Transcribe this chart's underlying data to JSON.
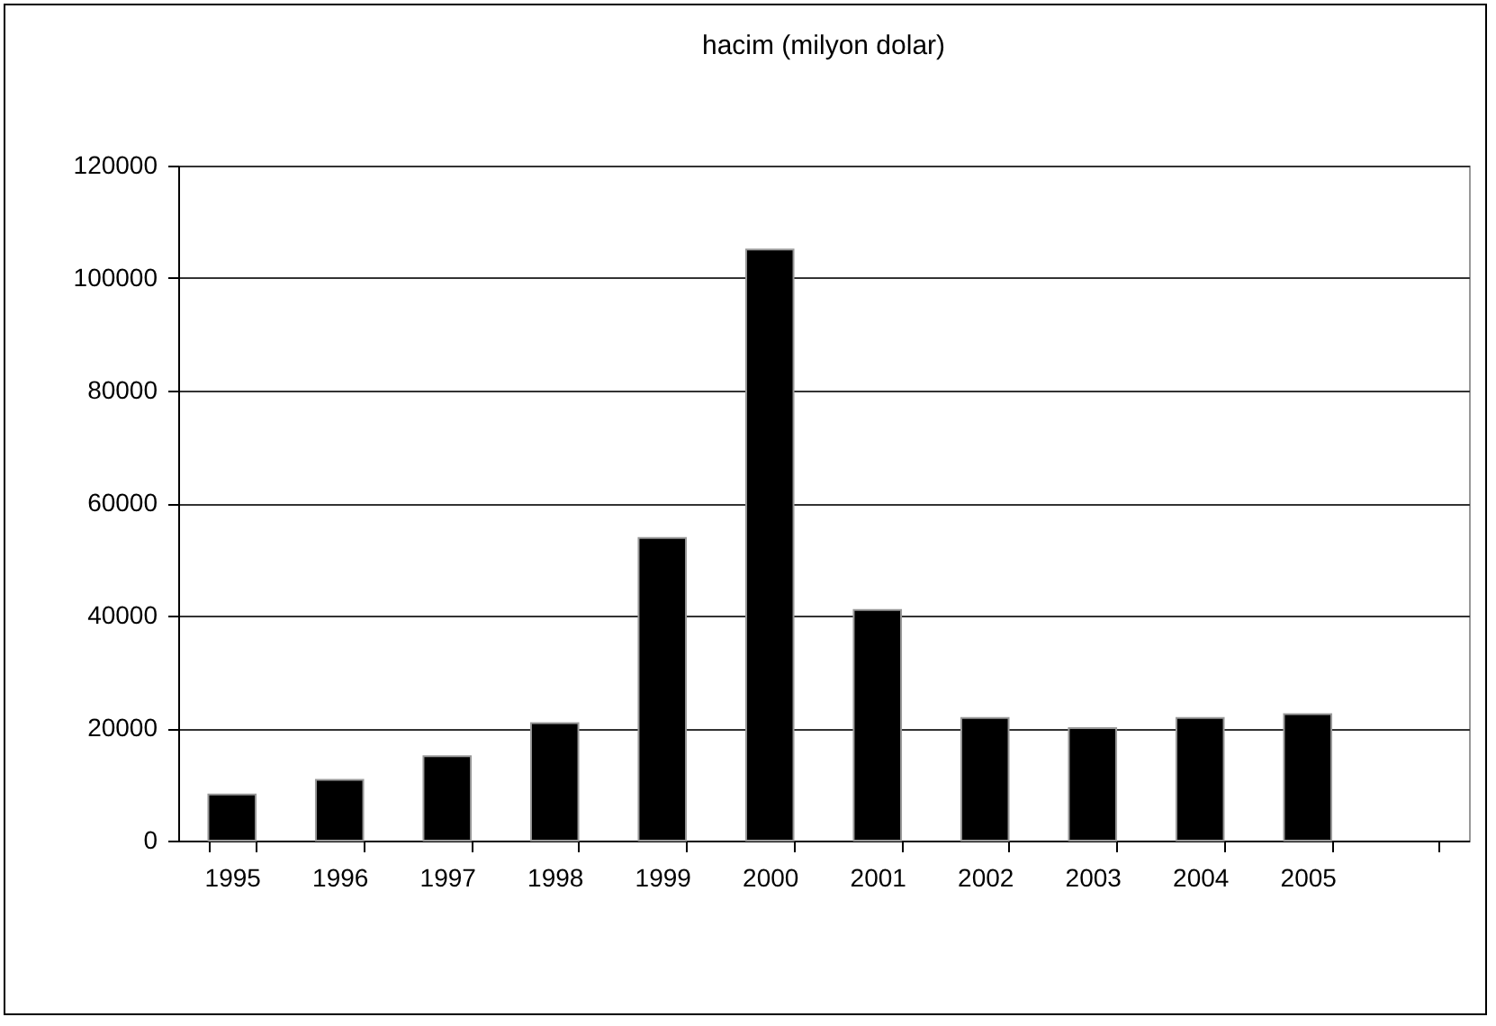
{
  "chart_data": {
    "type": "bar",
    "title": "hacim (milyon dolar)",
    "categories": [
      "1995",
      "1996",
      "1997",
      "1998",
      "1999",
      "2000",
      "2001",
      "2002",
      "2003",
      "2004",
      "2005",
      null
    ],
    "values": [
      8200,
      10800,
      15000,
      20900,
      53800,
      105100,
      41000,
      21800,
      20000,
      21800,
      22500,
      null
    ],
    "color": "#000000",
    "ylim": [
      0,
      120000
    ],
    "yticks": [
      0,
      20000,
      40000,
      60000,
      80000,
      100000,
      120000
    ],
    "grid": "y"
  }
}
